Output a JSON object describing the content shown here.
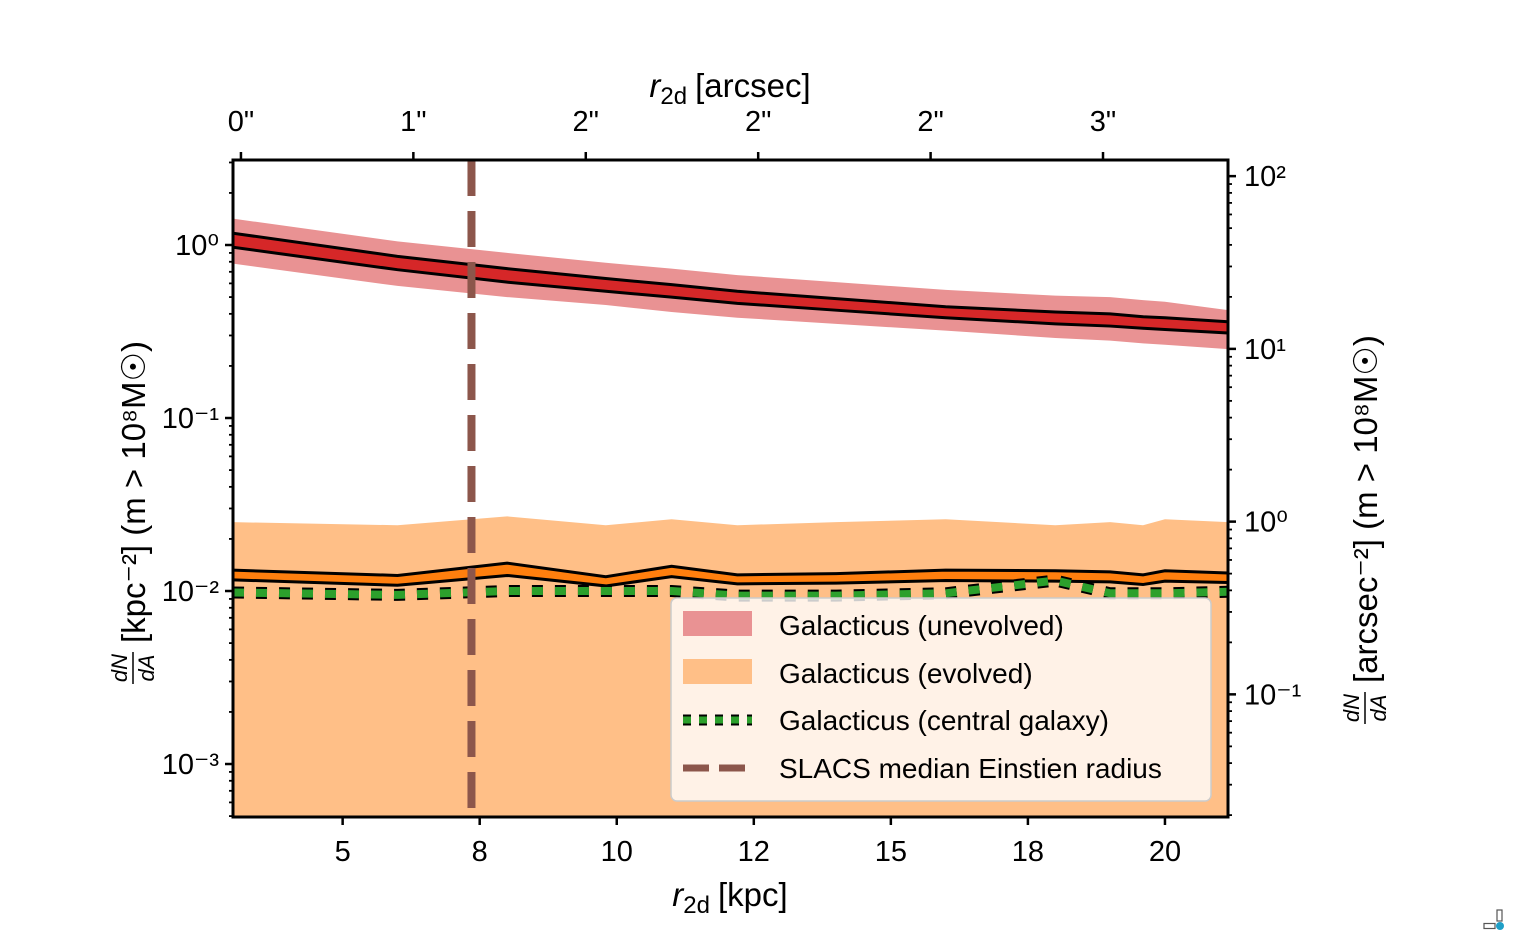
{
  "chart_data": {
    "type": "line",
    "xlabel": "r_2d [kpc]",
    "xlabel_main": "r",
    "xlabel_sub": "2d",
    "xlabel_unit": "[kpc]",
    "xlim": [
      3.0,
      21.15
    ],
    "x_ticks": [
      5,
      7.5,
      10,
      12.5,
      15,
      17.5,
      20
    ],
    "x_tick_labels": [
      "5",
      "8",
      "10",
      "12",
      "15",
      "18",
      "20"
    ],
    "top_xlabel_main": "r",
    "top_xlabel_sub": "2d",
    "top_xlabel_unit": "[arcsec]",
    "top_x_ticks_arcsec": [
      0.5,
      1.0,
      1.5,
      2.0,
      2.5,
      3.0
    ],
    "top_x_tick_labels": [
      "0\"",
      "1\"",
      "2\"",
      "2\"",
      "2\"",
      "3\""
    ],
    "kpc_per_arcsec": 6.29,
    "yscale": "log",
    "ylim": [
      0.000494,
      3.1
    ],
    "y_ticks": [
      1,
      0.1,
      0.01,
      0.001
    ],
    "y_tick_labels": [
      "10⁰",
      "10⁻¹",
      "10⁻²",
      "10⁻³"
    ],
    "ylabel_num": "dN",
    "ylabel_den": "dA",
    "ylabel_rest": "[kpc⁻²] (m > 10⁸M☉)",
    "right_yscale": "log",
    "right_ylim": [
      0.0195,
      124
    ],
    "right_y_ticks": [
      100,
      10,
      1,
      0.1
    ],
    "right_y_tick_labels": [
      "10²",
      "10¹",
      "10⁰",
      "10⁻¹"
    ],
    "right_ylabel_num": "dN",
    "right_ylabel_den": "dA",
    "right_ylabel_rest": "[arcsec⁻²] (m > 10⁸M☉)",
    "grid": false,
    "legend_position": "lower-right",
    "x": [
      3,
      6,
      8,
      9.8,
      11,
      12.2,
      14,
      16,
      18,
      19,
      19.6,
      20,
      21.15
    ],
    "series": [
      {
        "name": "Galacticus (unevolved)",
        "color": "#d62728",
        "band_color": "#e99293",
        "outer_upper": [
          1.42,
          1.05,
          0.9,
          0.79,
          0.73,
          0.67,
          0.61,
          0.55,
          0.51,
          0.5,
          0.48,
          0.47,
          0.42
        ],
        "outer_lower": [
          0.78,
          0.58,
          0.5,
          0.45,
          0.41,
          0.38,
          0.35,
          0.32,
          0.29,
          0.28,
          0.27,
          0.265,
          0.25
        ],
        "inner_upper": [
          1.17,
          0.86,
          0.73,
          0.64,
          0.59,
          0.54,
          0.49,
          0.44,
          0.41,
          0.4,
          0.385,
          0.38,
          0.36
        ],
        "inner_lower": [
          0.97,
          0.72,
          0.61,
          0.54,
          0.5,
          0.46,
          0.42,
          0.38,
          0.35,
          0.34,
          0.33,
          0.325,
          0.31
        ]
      },
      {
        "name": "Galacticus (evolved)",
        "color": "#ff7f0e",
        "band_color": "#ffbf87",
        "outer_upper": [
          0.025,
          0.024,
          0.027,
          0.024,
          0.026,
          0.024,
          0.025,
          0.026,
          0.024,
          0.025,
          0.024,
          0.026,
          0.025
        ],
        "outer_lower": [
          0,
          0,
          0,
          0,
          0,
          0,
          0,
          0,
          0,
          0,
          0,
          0,
          0
        ],
        "inner_upper": [
          0.0132,
          0.0123,
          0.0145,
          0.0121,
          0.0139,
          0.0124,
          0.0126,
          0.0132,
          0.0131,
          0.0129,
          0.0124,
          0.0131,
          0.0127
        ],
        "inner_lower": [
          0.0116,
          0.0108,
          0.0123,
          0.0107,
          0.0121,
          0.011,
          0.0111,
          0.0115,
          0.0114,
          0.0113,
          0.0109,
          0.0114,
          0.0112
        ]
      },
      {
        "name": "Galacticus (central galaxy)",
        "color": "#2ca02c",
        "style": "dotted",
        "values": [
          0.0098,
          0.0095,
          0.01,
          0.01,
          0.01,
          0.0094,
          0.0094,
          0.0097,
          0.0115,
          0.0097,
          0.0097,
          0.0097,
          0.0099
        ]
      },
      {
        "name": "SLACS median Einstien radius",
        "color": "#8c564b",
        "style": "dashed",
        "vline_x": 7.35
      }
    ]
  }
}
